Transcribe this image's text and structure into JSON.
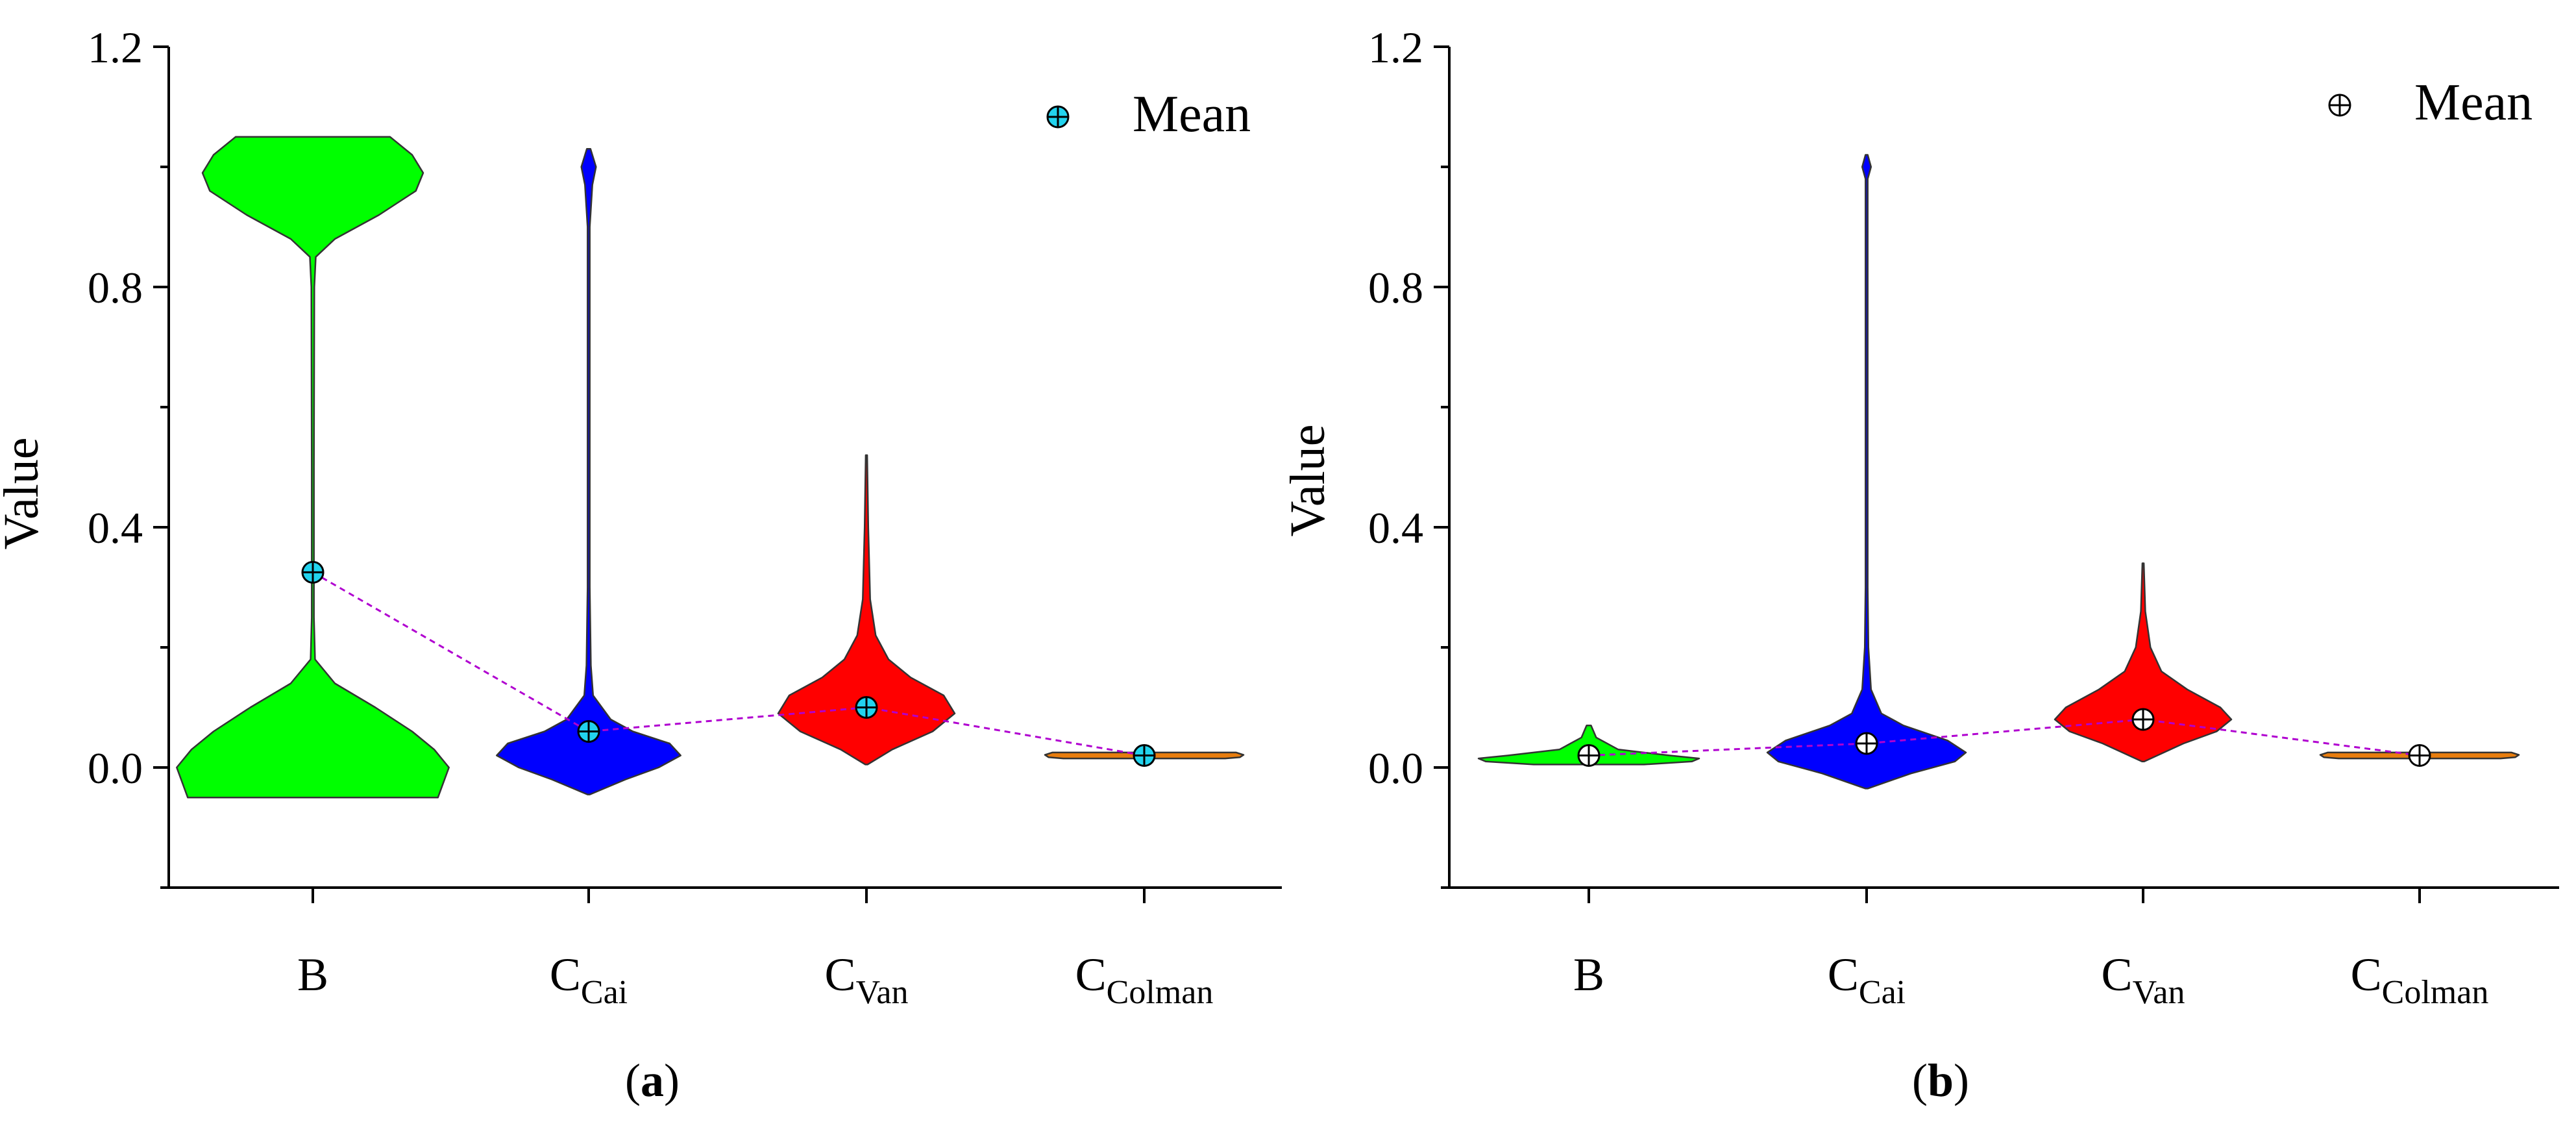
{
  "chart_data": [
    {
      "panel": "(a)",
      "panel_label": {
        "open": "(",
        "letter": "a",
        "close": ")"
      },
      "type": "violin",
      "ylabel": "Value",
      "xlabel": "",
      "ylim": [
        -0.2,
        1.2
      ],
      "yticks": [
        0.0,
        0.4,
        0.8,
        1.2
      ],
      "ytick_labels": [
        "0.0",
        "0.4",
        "0.8",
        "1.2"
      ],
      "legend": {
        "label": "Mean",
        "position": "top-right",
        "marker_color": "#22d3ee"
      },
      "mean_marker_color": "#22d3ee",
      "mean_line_color": "#b000d0",
      "categories": [
        {
          "label": "B",
          "main": "B",
          "sub": "",
          "color": "#00ff00",
          "mean": 0.325,
          "outline": [
            [
              -0.05,
              0.34
            ],
            [
              0.0,
              0.37
            ],
            [
              0.03,
              0.33
            ],
            [
              0.06,
              0.27
            ],
            [
              0.1,
              0.17
            ],
            [
              0.14,
              0.06
            ],
            [
              0.18,
              0.006
            ],
            [
              0.25,
              0.003
            ],
            [
              0.5,
              0.003
            ],
            [
              0.8,
              0.004
            ],
            [
              0.85,
              0.008
            ],
            [
              0.88,
              0.06
            ],
            [
              0.92,
              0.18
            ],
            [
              0.96,
              0.28
            ],
            [
              0.99,
              0.3
            ],
            [
              1.02,
              0.27
            ],
            [
              1.05,
              0.21
            ]
          ]
        },
        {
          "label": "CCai",
          "main": "C",
          "sub": "Cai",
          "color": "#0000ff",
          "mean": 0.06,
          "outline": [
            [
              -0.045,
              0.003
            ],
            [
              -0.02,
              0.1
            ],
            [
              0.0,
              0.19
            ],
            [
              0.02,
              0.25
            ],
            [
              0.04,
              0.22
            ],
            [
              0.06,
              0.12
            ],
            [
              0.08,
              0.06
            ],
            [
              0.12,
              0.012
            ],
            [
              0.17,
              0.006
            ],
            [
              0.3,
              0.003
            ],
            [
              0.9,
              0.003
            ],
            [
              0.97,
              0.01
            ],
            [
              1.0,
              0.02
            ],
            [
              1.03,
              0.005
            ]
          ]
        },
        {
          "label": "CVan",
          "main": "C",
          "sub": "Van",
          "color": "#ff0000",
          "mean": 0.1,
          "outline": [
            [
              0.005,
              0.003
            ],
            [
              0.03,
              0.07
            ],
            [
              0.06,
              0.18
            ],
            [
              0.09,
              0.24
            ],
            [
              0.12,
              0.21
            ],
            [
              0.15,
              0.12
            ],
            [
              0.18,
              0.06
            ],
            [
              0.22,
              0.025
            ],
            [
              0.28,
              0.01
            ],
            [
              0.4,
              0.005
            ],
            [
              0.52,
              0.002
            ]
          ]
        },
        {
          "label": "CColman",
          "main": "C",
          "sub": "Colman",
          "color": "#e87d0e",
          "mean": 0.02,
          "outline": [
            [
              0.015,
              0.22
            ],
            [
              0.017,
              0.26
            ],
            [
              0.021,
              0.27
            ],
            [
              0.025,
              0.25
            ]
          ]
        }
      ]
    },
    {
      "panel": "(b)",
      "panel_label": {
        "open": "(",
        "letter": "b",
        "close": ")"
      },
      "type": "violin",
      "ylabel": "Value",
      "xlabel": "",
      "ylim": [
        -0.2,
        1.2
      ],
      "yticks": [
        0.0,
        0.4,
        0.8,
        1.2
      ],
      "ytick_labels": [
        "0.0",
        "0.4",
        "0.8",
        "1.2"
      ],
      "legend": {
        "label": "Mean",
        "position": "top-right",
        "marker_color": "#ffffff"
      },
      "mean_marker_color": "#ffffff",
      "mean_line_color": "#b000d0",
      "categories": [
        {
          "label": "B",
          "main": "B",
          "sub": "",
          "color": "#00ff00",
          "mean": 0.02,
          "outline": [
            [
              0.005,
              0.15
            ],
            [
              0.01,
              0.28
            ],
            [
              0.015,
              0.3
            ],
            [
              0.02,
              0.22
            ],
            [
              0.03,
              0.08
            ],
            [
              0.05,
              0.02
            ],
            [
              0.07,
              0.006
            ]
          ]
        },
        {
          "label": "CCai",
          "main": "C",
          "sub": "Cai",
          "color": "#0000ff",
          "mean": 0.04,
          "outline": [
            [
              -0.035,
              0.003
            ],
            [
              -0.01,
              0.12
            ],
            [
              0.01,
              0.24
            ],
            [
              0.025,
              0.27
            ],
            [
              0.045,
              0.22
            ],
            [
              0.07,
              0.1
            ],
            [
              0.09,
              0.04
            ],
            [
              0.13,
              0.012
            ],
            [
              0.2,
              0.005
            ],
            [
              0.3,
              0.003
            ],
            [
              0.98,
              0.003
            ],
            [
              1.0,
              0.012
            ],
            [
              1.02,
              0.003
            ]
          ]
        },
        {
          "label": "CVan",
          "main": "C",
          "sub": "Van",
          "color": "#ff0000",
          "mean": 0.08,
          "outline": [
            [
              0.01,
              0.003
            ],
            [
              0.04,
              0.11
            ],
            [
              0.06,
              0.2
            ],
            [
              0.08,
              0.24
            ],
            [
              0.1,
              0.21
            ],
            [
              0.13,
              0.12
            ],
            [
              0.16,
              0.05
            ],
            [
              0.2,
              0.02
            ],
            [
              0.26,
              0.006
            ],
            [
              0.34,
              0.002
            ]
          ]
        },
        {
          "label": "CColman",
          "main": "C",
          "sub": "Colman",
          "color": "#e87d0e",
          "mean": 0.02,
          "outline": [
            [
              0.015,
              0.22
            ],
            [
              0.017,
              0.26
            ],
            [
              0.021,
              0.27
            ],
            [
              0.025,
              0.25
            ]
          ]
        }
      ]
    }
  ]
}
